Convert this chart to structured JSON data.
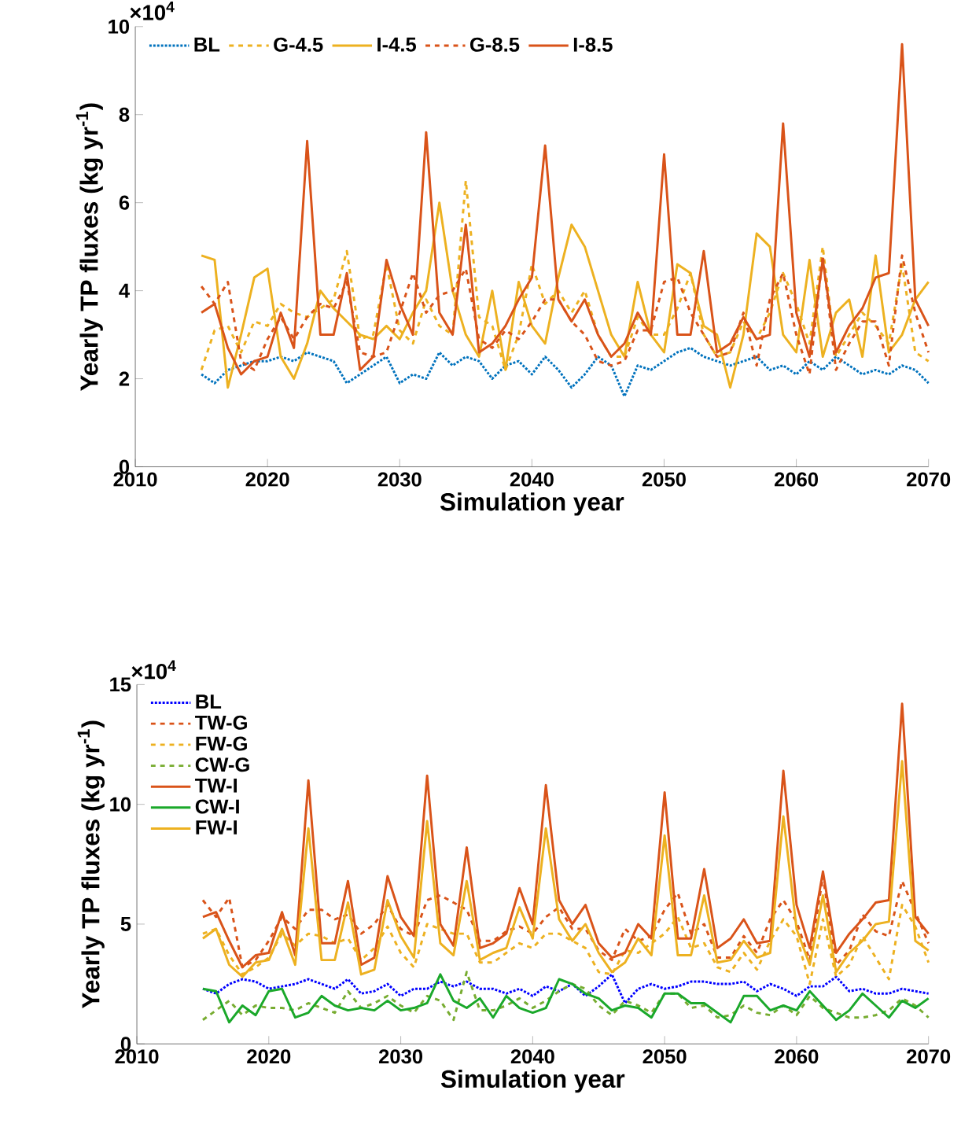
{
  "chart_data": [
    {
      "type": "line",
      "xlabel": "Simulation year",
      "ylabel": "Yearly TP fluxes (kg yr$^{-1}$)",
      "annotations": [
        "×10$^{4}$"
      ],
      "x": [
        2015,
        2016,
        2017,
        2018,
        2019,
        2020,
        2021,
        2022,
        2023,
        2024,
        2025,
        2026,
        2027,
        2028,
        2029,
        2030,
        2031,
        2032,
        2033,
        2034,
        2035,
        2036,
        2037,
        2038,
        2039,
        2040,
        2041,
        2042,
        2043,
        2044,
        2045,
        2046,
        2047,
        2048,
        2049,
        2050,
        2051,
        2052,
        2053,
        2054,
        2055,
        2056,
        2057,
        2058,
        2059,
        2060,
        2061,
        2062,
        2063,
        2064,
        2065,
        2066,
        2067,
        2068,
        2069,
        2070
      ],
      "xlim": [
        2010,
        2070
      ],
      "xticks": [
        2010,
        2020,
        2030,
        2040,
        2050,
        2060,
        2070
      ],
      "ylim": [
        0,
        10
      ],
      "yticks": [
        0,
        2,
        4,
        6,
        8,
        10
      ],
      "legend": "top left",
      "series": [
        {
          "name": "BL",
          "color": "#0072bd",
          "line_style": "dotted",
          "values": [
            2.1,
            1.9,
            2.2,
            2.3,
            2.4,
            2.4,
            2.5,
            2.4,
            2.6,
            2.5,
            2.4,
            1.9,
            2.1,
            2.3,
            2.5,
            1.9,
            2.1,
            2.0,
            2.6,
            2.3,
            2.5,
            2.4,
            2.0,
            2.3,
            2.4,
            2.1,
            2.5,
            2.2,
            1.8,
            2.1,
            2.5,
            2.3,
            1.6,
            2.3,
            2.2,
            2.4,
            2.6,
            2.7,
            2.5,
            2.4,
            2.3,
            2.4,
            2.5,
            2.2,
            2.3,
            2.1,
            2.4,
            2.2,
            2.5,
            2.3,
            2.1,
            2.2,
            2.1,
            2.3,
            2.2,
            1.9
          ]
        },
        {
          "name": "G-4.5",
          "color": "#edb120",
          "line_style": "dashed",
          "values": [
            2.2,
            3.1,
            3.2,
            2.6,
            3.3,
            3.2,
            3.7,
            3.5,
            3.4,
            3.6,
            3.8,
            4.9,
            2.9,
            3.0,
            4.6,
            3.1,
            2.8,
            3.8,
            3.2,
            3.0,
            6.5,
            3.4,
            3.2,
            2.2,
            3.0,
            4.6,
            3.7,
            4.0,
            3.5,
            4.0,
            3.0,
            2.5,
            2.5,
            3.4,
            3.0,
            3.0,
            3.6,
            4.4,
            3.0,
            2.5,
            2.6,
            3.3,
            2.9,
            3.5,
            4.4,
            3.7,
            2.8,
            5.0,
            2.5,
            3.0,
            3.5,
            3.2,
            2.8,
            4.6,
            2.6,
            2.4
          ]
        },
        {
          "name": "I-4.5",
          "color": "#edb120",
          "line_style": "solid",
          "values": [
            4.8,
            4.7,
            1.8,
            3.0,
            4.3,
            4.5,
            2.5,
            2.0,
            2.8,
            4.0,
            3.6,
            3.3,
            3.0,
            2.9,
            3.2,
            2.9,
            3.5,
            4.0,
            6.0,
            4.0,
            3.0,
            2.5,
            4.0,
            2.2,
            4.2,
            3.2,
            2.8,
            4.3,
            5.5,
            5.0,
            4.0,
            3.0,
            2.5,
            4.2,
            3.0,
            2.6,
            4.6,
            4.4,
            3.2,
            3.0,
            1.8,
            3.0,
            5.3,
            5.0,
            3.0,
            2.6,
            4.7,
            2.5,
            3.5,
            3.8,
            2.5,
            4.8,
            2.6,
            3.0,
            3.8,
            4.2
          ]
        },
        {
          "name": "G-8.5",
          "color": "#d95319",
          "line_style": "dashed",
          "values": [
            4.1,
            3.7,
            4.2,
            2.4,
            2.2,
            2.9,
            3.4,
            2.9,
            3.4,
            3.7,
            3.6,
            4.2,
            2.6,
            2.5,
            2.6,
            3.5,
            4.4,
            3.5,
            3.9,
            4.0,
            4.5,
            2.9,
            2.7,
            3.1,
            2.9,
            3.3,
            3.8,
            3.8,
            3.3,
            3.0,
            2.4,
            2.3,
            2.4,
            3.1,
            3.1,
            4.2,
            4.3,
            3.5,
            3.0,
            2.5,
            2.6,
            3.5,
            2.3,
            3.8,
            4.4,
            3.0,
            2.1,
            4.8,
            2.2,
            2.8,
            3.3,
            3.3,
            2.3,
            4.8,
            3.5,
            2.6
          ]
        },
        {
          "name": "I-8.5",
          "color": "#d95319",
          "line_style": "solid",
          "values": [
            3.5,
            3.7,
            2.7,
            2.1,
            2.4,
            2.5,
            3.5,
            2.7,
            7.4,
            3.0,
            3.0,
            4.4,
            2.2,
            2.5,
            4.7,
            3.7,
            3.0,
            7.6,
            3.5,
            3.0,
            5.5,
            2.6,
            2.8,
            3.2,
            3.8,
            4.3,
            7.3,
            3.8,
            3.3,
            3.8,
            3.0,
            2.5,
            2.8,
            3.5,
            3.0,
            7.1,
            3.0,
            3.0,
            4.9,
            2.6,
            2.8,
            3.4,
            2.9,
            3.0,
            7.8,
            3.5,
            2.5,
            4.7,
            2.6,
            3.2,
            3.6,
            4.3,
            4.4,
            9.6,
            3.8,
            3.2
          ]
        }
      ]
    },
    {
      "type": "line",
      "xlabel": "Simulation year",
      "ylabel": "Yearly TP fluxes (kg yr$^{-1}$)",
      "annotations": [
        "×10$^{4}$"
      ],
      "x": [
        2015,
        2016,
        2017,
        2018,
        2019,
        2020,
        2021,
        2022,
        2023,
        2024,
        2025,
        2026,
        2027,
        2028,
        2029,
        2030,
        2031,
        2032,
        2033,
        2034,
        2035,
        2036,
        2037,
        2038,
        2039,
        2040,
        2041,
        2042,
        2043,
        2044,
        2045,
        2046,
        2047,
        2048,
        2049,
        2050,
        2051,
        2052,
        2053,
        2054,
        2055,
        2056,
        2057,
        2058,
        2059,
        2060,
        2061,
        2062,
        2063,
        2064,
        2065,
        2066,
        2067,
        2068,
        2069,
        2070
      ],
      "xlim": [
        2010,
        2070
      ],
      "xticks": [
        2010,
        2020,
        2030,
        2040,
        2050,
        2060,
        2070
      ],
      "ylim": [
        0,
        15
      ],
      "yticks": [
        0,
        5,
        10,
        15
      ],
      "legend": "top left",
      "series": [
        {
          "name": "BL",
          "color": "#0000ff",
          "line_style": "dotted",
          "values": [
            2.3,
            2.1,
            2.5,
            2.7,
            2.6,
            2.3,
            2.4,
            2.5,
            2.7,
            2.5,
            2.3,
            2.7,
            2.1,
            2.2,
            2.5,
            2.0,
            2.3,
            2.3,
            2.6,
            2.4,
            2.6,
            2.3,
            2.3,
            2.1,
            2.3,
            2.0,
            2.4,
            2.2,
            2.5,
            2.0,
            2.4,
            2.9,
            1.7,
            2.3,
            2.5,
            2.3,
            2.4,
            2.6,
            2.6,
            2.5,
            2.5,
            2.6,
            2.2,
            2.5,
            2.3,
            2.0,
            2.4,
            2.4,
            2.8,
            2.2,
            2.3,
            2.1,
            2.1,
            2.3,
            2.2,
            2.1
          ]
        },
        {
          "name": "TW-G",
          "color": "#d95319",
          "line_style": "dashed",
          "values": [
            6.0,
            5.3,
            6.1,
            3.2,
            3.5,
            4.3,
            5.3,
            4.8,
            5.6,
            5.6,
            5.2,
            5.4,
            4.6,
            5.0,
            5.8,
            4.8,
            4.5,
            6.0,
            6.2,
            5.9,
            5.6,
            4.3,
            4.3,
            4.7,
            4.9,
            4.6,
            5.3,
            5.7,
            4.8,
            4.8,
            3.9,
            3.5,
            4.8,
            4.3,
            4.5,
            5.6,
            6.3,
            4.6,
            5.0,
            3.6,
            3.6,
            4.5,
            3.8,
            5.2,
            6.0,
            5.1,
            3.5,
            7.0,
            3.3,
            3.9,
            5.4,
            4.7,
            4.5,
            6.8,
            5.5,
            4.2
          ]
        },
        {
          "name": "FW-G",
          "color": "#edb120",
          "line_style": "dashed",
          "values": [
            4.6,
            4.8,
            3.7,
            2.9,
            3.2,
            3.6,
            4.6,
            4.1,
            4.6,
            4.5,
            4.2,
            4.4,
            3.5,
            4.0,
            4.9,
            3.8,
            3.2,
            5.0,
            4.8,
            4.6,
            4.6,
            3.4,
            3.4,
            3.8,
            4.2,
            4.0,
            4.6,
            4.6,
            4.3,
            4.0,
            3.0,
            2.9,
            3.9,
            3.8,
            4.2,
            4.6,
            5.3,
            4.0,
            4.2,
            3.2,
            3.0,
            3.8,
            3.1,
            4.3,
            5.2,
            4.5,
            2.5,
            5.2,
            2.8,
            3.3,
            4.5,
            3.6,
            2.7,
            5.8,
            4.9,
            3.4
          ]
        },
        {
          "name": "CW-G",
          "color": "#77ac30",
          "line_style": "dashed",
          "values": [
            1.0,
            1.4,
            1.8,
            1.2,
            1.6,
            1.5,
            1.5,
            1.4,
            1.7,
            1.5,
            1.3,
            2.2,
            1.5,
            1.7,
            2.0,
            1.6,
            1.3,
            2.0,
            1.8,
            1.0,
            3.0,
            1.4,
            1.4,
            1.6,
            1.9,
            1.5,
            1.8,
            2.2,
            2.5,
            2.3,
            1.6,
            1.2,
            1.8,
            1.6,
            1.3,
            2.1,
            2.1,
            1.5,
            1.6,
            1.1,
            1.2,
            1.6,
            1.3,
            1.2,
            1.6,
            1.2,
            2.0,
            1.5,
            1.3,
            1.1,
            1.1,
            1.2,
            1.4,
            1.9,
            1.6,
            1.1
          ]
        },
        {
          "name": "TW-I",
          "color": "#d95319",
          "line_style": "solid",
          "values": [
            5.3,
            5.5,
            4.3,
            3.2,
            3.7,
            3.8,
            5.5,
            3.7,
            11.0,
            4.2,
            4.2,
            6.8,
            3.3,
            3.6,
            7.0,
            5.3,
            4.5,
            11.2,
            5.0,
            4.1,
            8.2,
            4.0,
            4.2,
            4.6,
            6.5,
            5.0,
            10.8,
            6.0,
            5.0,
            5.8,
            4.2,
            3.6,
            3.8,
            5.0,
            4.4,
            10.5,
            4.4,
            4.4,
            7.3,
            4.0,
            4.4,
            5.2,
            4.2,
            4.3,
            11.4,
            5.8,
            4.0,
            7.2,
            3.8,
            4.6,
            5.2,
            5.9,
            6.0,
            14.2,
            5.3,
            4.6
          ]
        },
        {
          "name": "CW-I",
          "color": "#1aa82a",
          "line_style": "solid",
          "values": [
            2.3,
            2.2,
            0.9,
            1.6,
            1.2,
            2.2,
            2.3,
            1.1,
            1.3,
            2.0,
            1.6,
            1.4,
            1.5,
            1.4,
            1.8,
            1.4,
            1.5,
            1.7,
            2.9,
            1.8,
            1.5,
            1.9,
            1.1,
            2.0,
            1.5,
            1.3,
            1.5,
            2.7,
            2.5,
            2.1,
            1.9,
            1.4,
            1.6,
            1.5,
            1.1,
            2.1,
            2.1,
            1.7,
            1.7,
            1.3,
            0.9,
            2.0,
            2.0,
            1.4,
            1.6,
            1.4,
            2.2,
            1.6,
            1.0,
            1.4,
            2.1,
            1.6,
            1.1,
            1.8,
            1.5,
            1.9
          ]
        },
        {
          "name": "FW-I",
          "color": "#edb120",
          "line_style": "solid",
          "values": [
            4.4,
            4.8,
            3.3,
            2.8,
            3.4,
            3.5,
            4.8,
            3.3,
            9.0,
            3.5,
            3.5,
            5.9,
            2.9,
            3.1,
            6.0,
            4.5,
            3.6,
            9.3,
            4.2,
            3.7,
            6.8,
            3.5,
            3.8,
            4.0,
            5.7,
            4.4,
            9.0,
            5.2,
            4.3,
            5.0,
            3.8,
            3.0,
            3.4,
            4.4,
            3.7,
            8.7,
            3.7,
            3.7,
            6.2,
            3.4,
            3.5,
            4.3,
            3.6,
            3.8,
            9.5,
            4.8,
            3.3,
            6.2,
            3.0,
            3.8,
            4.3,
            5.0,
            5.1,
            11.8,
            4.3,
            3.9
          ]
        }
      ]
    }
  ]
}
